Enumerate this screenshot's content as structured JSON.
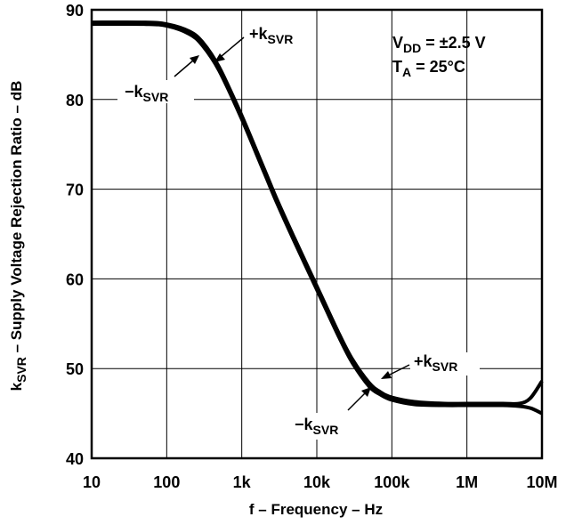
{
  "chart_data": {
    "type": "line",
    "title": "",
    "xlabel": "f – Frequency – Hz",
    "ylabel_main": "k",
    "ylabel_sub": "SVR",
    "ylabel_rest": " – Supply Voltage Rejection Ratio – dB",
    "xscale": "log",
    "xlim": [
      10,
      10000000
    ],
    "ylim": [
      40,
      90
    ],
    "grid": true,
    "x_ticks": [
      10,
      100,
      1000,
      10000,
      100000,
      1000000,
      10000000
    ],
    "x_tick_labels": [
      "10",
      "100",
      "1k",
      "10k",
      "100k",
      "1M",
      "10M"
    ],
    "y_ticks": [
      40,
      50,
      60,
      70,
      80,
      90
    ],
    "y_tick_labels": [
      "40",
      "50",
      "60",
      "70",
      "80",
      "90"
    ],
    "conditions": [
      {
        "main": "V",
        "sub": "DD",
        "rest": " = ±2.5 V"
      },
      {
        "main": "T",
        "sub": "A",
        "rest": " = 25°C"
      }
    ],
    "series": [
      {
        "x": [
          10,
          50,
          100,
          200,
          300,
          500,
          1000,
          2000,
          3000,
          5000,
          10000,
          20000,
          30000,
          50000,
          70000,
          100000,
          200000,
          500000,
          1000000,
          3000000,
          5000000,
          7000000,
          10000000
        ],
        "y": [
          88.6,
          88.6,
          88.4,
          87.6,
          86.4,
          83.6,
          78.2,
          72.2,
          68.7,
          64.6,
          59.2,
          53.8,
          51.0,
          48.4,
          47.4,
          46.8,
          46.3,
          46.1,
          46.1,
          46.1,
          46.1,
          46.7,
          48.6
        ]
      },
      {
        "x": [
          10,
          50,
          100,
          200,
          300,
          500,
          1000,
          2000,
          3000,
          5000,
          10000,
          20000,
          30000,
          50000,
          70000,
          100000,
          200000,
          500000,
          1000000,
          3000000,
          5000000,
          7000000,
          10000000
        ],
        "y": [
          88.4,
          88.4,
          88.2,
          87.3,
          86.0,
          83.2,
          77.8,
          71.8,
          68.3,
          64.2,
          58.8,
          53.4,
          50.6,
          48.0,
          47.1,
          46.5,
          46.0,
          45.9,
          45.9,
          45.9,
          45.8,
          45.6,
          45.0
        ]
      }
    ],
    "annotations": [
      {
        "sign": "+",
        "main": "k",
        "sub": "SVR"
      },
      {
        "sign": "−",
        "main": "k",
        "sub": "SVR"
      },
      {
        "sign": "+",
        "main": "k",
        "sub": "SVR"
      },
      {
        "sign": "−",
        "main": "k",
        "sub": "SVR"
      }
    ]
  }
}
